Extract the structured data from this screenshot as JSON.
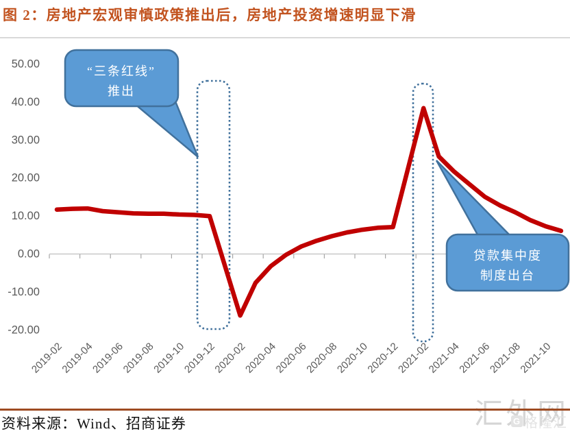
{
  "title": "图 2：房地产宏观审慎政策推出后，房地产投资增速明显下滑",
  "source": "资料来源：Wind、招商证券",
  "watermark": "汇外网",
  "watermark_small": {
    "logo": "G",
    "text": "格隆汇"
  },
  "annotations": {
    "callout1": {
      "line1": "“三条红线”",
      "line2": "推出"
    },
    "callout2": {
      "line1": "贷款集中度",
      "line2": "制度出台"
    }
  },
  "colors": {
    "title": "#C2531F",
    "line": "#C00000",
    "callout_fill": "#5B9BD5",
    "callout_border": "#41719C",
    "highlight_border": "#41719C",
    "axis_text": "#595959",
    "bottom_line": "#9E4B22",
    "watermark": "#D5D5D5"
  },
  "chart_data": {
    "type": "line",
    "title": "",
    "xlabel": "",
    "ylabel": "",
    "x": [
      "2019-02",
      "2019-03",
      "2019-04",
      "2019-05",
      "2019-06",
      "2019-07",
      "2019-08",
      "2019-09",
      "2019-10",
      "2019-11",
      "2019-12",
      "2020-02",
      "2020-03",
      "2020-04",
      "2020-05",
      "2020-06",
      "2020-07",
      "2020-08",
      "2020-09",
      "2020-10",
      "2020-11",
      "2020-12",
      "2021-02",
      "2021-03",
      "2021-04",
      "2021-05",
      "2021-06",
      "2021-07",
      "2021-08",
      "2021-09",
      "2021-10",
      "2021-11"
    ],
    "values": [
      11.6,
      11.8,
      11.9,
      11.2,
      10.9,
      10.6,
      10.5,
      10.5,
      10.3,
      10.2,
      9.9,
      -16.3,
      -7.7,
      -3.3,
      -0.3,
      1.9,
      3.4,
      4.6,
      5.6,
      6.3,
      6.8,
      7.0,
      38.3,
      25.6,
      21.6,
      18.3,
      15.0,
      12.7,
      10.9,
      8.8,
      7.2,
      6.0
    ],
    "ylim": [
      -20,
      50
    ],
    "ytick_step": 10,
    "ytick_format": "0.00",
    "xtick_labels": [
      "2019-02",
      "2019-04",
      "2019-06",
      "2019-08",
      "2019-10",
      "2019-12",
      "2020-02",
      "2020-04",
      "2020-06",
      "2020-08",
      "2020-10",
      "2020-12",
      "2021-02",
      "2021-04",
      "2021-06",
      "2021-08",
      "2021-10"
    ],
    "grid": false,
    "legend": "none",
    "line_color": "#C00000"
  }
}
